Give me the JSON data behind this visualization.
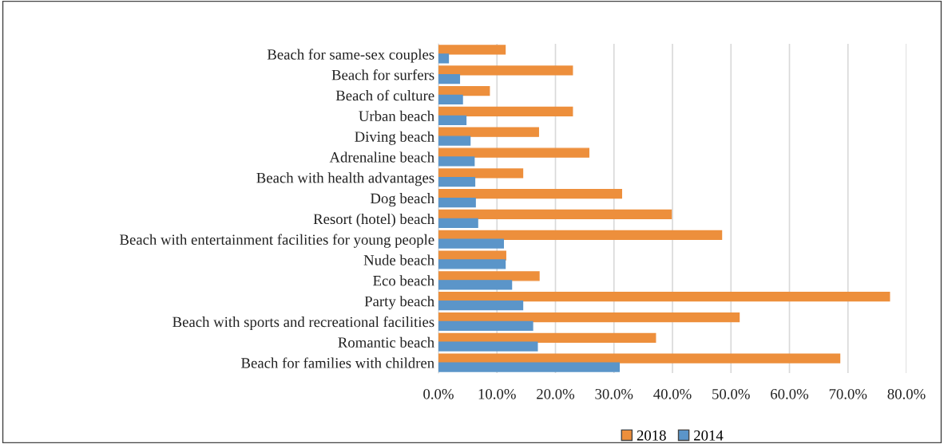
{
  "chart_data": {
    "type": "bar",
    "orientation": "horizontal",
    "categories": [
      "Beach for same-sex couples",
      "Beach for surfers",
      "Beach of culture",
      "Urban beach",
      "Diving beach",
      "Adrenaline beach",
      "Beach with health advantages",
      "Dog beach",
      "Resort (hotel) beach",
      "Beach with entertainment facilities for young people",
      "Nude beach",
      "Eco beach",
      "Party beach",
      "Beach with sports and recreational facilities",
      "Romantic beach",
      "Beach for families with children"
    ],
    "series": [
      {
        "name": "2018",
        "color": "#ed8f3c",
        "values": [
          11.4,
          22.9,
          8.7,
          22.9,
          17.1,
          25.7,
          14.4,
          31.3,
          39.8,
          48.4,
          11.5,
          17.2,
          77.1,
          51.4,
          37.1,
          68.6
        ]
      },
      {
        "name": "2014",
        "color": "#5b95c9",
        "values": [
          1.7,
          3.6,
          4.1,
          4.7,
          5.4,
          6.1,
          6.2,
          6.3,
          6.7,
          11.1,
          11.4,
          12.5,
          14.4,
          16.1,
          16.9,
          30.9
        ]
      }
    ],
    "xlim": [
      0,
      80
    ],
    "xticks": [
      {
        "value": 0,
        "label": "0.0%"
      },
      {
        "value": 10,
        "label": "10.0%"
      },
      {
        "value": 20,
        "label": "20.0%"
      },
      {
        "value": 30,
        "label": "30.0%"
      },
      {
        "value": 40,
        "label": "40.0%"
      },
      {
        "value": 50,
        "label": "50.0%"
      },
      {
        "value": 60,
        "label": "60.0%"
      },
      {
        "value": 70,
        "label": "70.0%"
      },
      {
        "value": 80,
        "label": "80.0%"
      }
    ],
    "grid": "x",
    "legend": "bottom"
  }
}
